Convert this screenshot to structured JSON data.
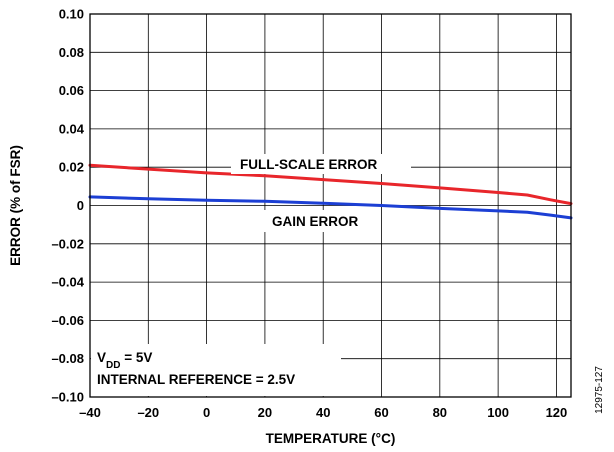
{
  "chart_data": {
    "type": "line",
    "xlabel": "TEMPERATURE (°C)",
    "ylabel": "ERROR (% of FSR)",
    "xlim": [
      -40,
      125
    ],
    "ylim": [
      -0.1,
      0.1
    ],
    "x_ticks": [
      -40,
      -20,
      0,
      20,
      40,
      60,
      80,
      100,
      120
    ],
    "x_tick_labels": [
      "–40",
      "–20",
      "0",
      "20",
      "40",
      "60",
      "80",
      "100",
      "120"
    ],
    "y_ticks": [
      0.1,
      0.08,
      0.06,
      0.04,
      0.02,
      0,
      -0.02,
      -0.04,
      -0.06,
      -0.08,
      -0.1
    ],
    "y_tick_labels": [
      "0.10",
      "0.08",
      "0.06",
      "0.04",
      "0.02",
      "0",
      "–0.02",
      "–0.04",
      "–0.06",
      "–0.08",
      "–0.10"
    ],
    "grid": true,
    "series": [
      {
        "name": "FULL-SCALE ERROR",
        "color": "#e8262b",
        "x": [
          -40,
          -20,
          0,
          20,
          40,
          60,
          80,
          100,
          110,
          118,
          125
        ],
        "y": [
          0.021,
          0.019,
          0.017,
          0.0155,
          0.0135,
          0.0115,
          0.0092,
          0.0068,
          0.0055,
          0.003,
          0.001
        ]
      },
      {
        "name": "GAIN ERROR",
        "color": "#1c3fd4",
        "x": [
          -40,
          -20,
          0,
          20,
          40,
          60,
          80,
          100,
          110,
          118,
          125
        ],
        "y": [
          0.0045,
          0.0035,
          0.0027,
          0.0022,
          0.0012,
          0.0,
          -0.0015,
          -0.0028,
          -0.0035,
          -0.005,
          -0.0065
        ]
      }
    ],
    "annotations": {
      "vdd_prefix": "V",
      "vdd_subscript": "DD",
      "vdd_value": " = 5V",
      "internal_reference": "INTERNAL REFERENCE = 2.5V"
    },
    "figure_id": "12975-127"
  }
}
